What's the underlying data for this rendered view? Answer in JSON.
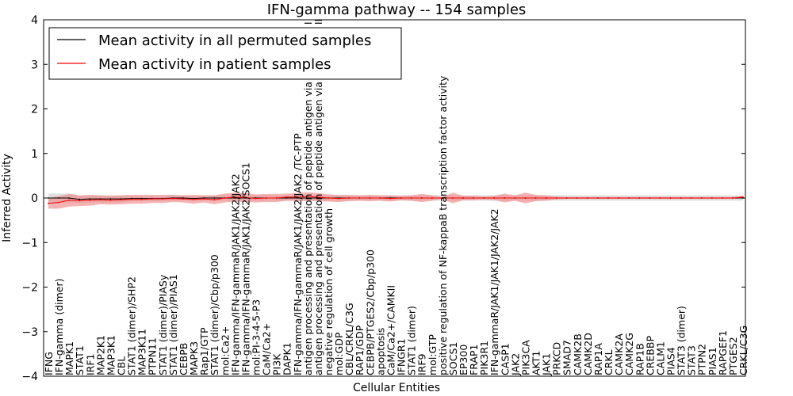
{
  "chart_data": {
    "type": "line",
    "title": "IFN-gamma pathway -- 154 samples",
    "xlabel": "Cellular Entities",
    "ylabel": "Inferred Activity",
    "ylim": [
      -4,
      4
    ],
    "yticks": [
      -4,
      -3,
      -2,
      -1,
      0,
      1,
      2,
      3,
      4
    ],
    "ytick_labels": [
      "−4",
      "−3",
      "−2",
      "−1",
      "0",
      "1",
      "2",
      "3",
      "4"
    ],
    "legend_position": "top-left",
    "categories": [
      "IFNG",
      "IFN-gamma (dimer)",
      "MAPK1",
      "STAT1",
      "IRF1",
      "MAP2K1",
      "MAP3K1",
      "CBL",
      "STAT1 (dimer)/SHP2",
      "MAP3K11",
      "PTPN11",
      "STAT1 (dimer)/PIASy",
      "STAT1 (dimer)/PIAS1",
      "CEBPB",
      "MAPK3",
      "Rap1/GTP",
      "STAT1 (dimer)/Cbp/p300",
      "mol:Ca2+",
      "IFN-gamma/IFN-gammaR/JAK1/JAK2/JAK2",
      "IFN-gamma/IFN-gammaR/JAK1/JAK2/SOCS1",
      "mol:PI-3-4-5-P3",
      "CaM/Ca2+",
      "PI3K",
      "DAPK1",
      "IFN-gamma/IFN-gammaR/JAK1/JAK2/JAK2 /TC-PTP",
      "antigen processing and presentation of peptide antigen via MHC class I",
      "antigen processing and presentation of peptide antigen via MHC class II",
      "negative regulation of cell growth",
      "mol:GDP",
      "CBL/CRKL/C3G",
      "RAP1/GDP",
      "CEBPB/PTGES2/Cbp/p300",
      "apoptosis",
      "CaM/Ca2+/CAMKII",
      "IFNGR1",
      "STAT1 (dimer)",
      "IRF9",
      "mol:GTP",
      "positive regulation of NF-kappaB transcription factor activity",
      "SOCS1",
      "EP300",
      "FRAP1",
      "PIK3R1",
      "IFN-gammaR/JAK1/JAK1/JAK2/JAK2",
      "CASP1",
      "JAK2",
      "PIK3CA",
      "AKT1",
      "JAK1",
      "PRKCD",
      "SMAD7",
      "CAMK2B",
      "CAMK2D",
      "RAP1A",
      "CRKL",
      "CAMK2A",
      "CAMK2G",
      "RAP1B",
      "CREBBP",
      "CALM1",
      "PIAS4",
      "STAT3 (dimer)",
      "STAT3",
      "PTPN2",
      "PIAS1",
      "RAPGEF1",
      "PTGES2",
      "CRKL/C3G"
    ],
    "series": [
      {
        "name": "Mean activity in all permuted samples",
        "color": "#000000",
        "band_color": "#bfbfbf",
        "values": [
          0.0,
          0.0,
          0.0,
          -0.03,
          -0.02,
          -0.02,
          -0.02,
          -0.02,
          -0.01,
          -0.01,
          -0.01,
          -0.01,
          0.0,
          0.0,
          -0.01,
          0.0,
          0.0,
          0.0,
          0.0,
          0.0,
          0.0,
          0.0,
          0.0,
          0.0,
          0.0,
          0.0,
          0.0,
          0.0,
          0.0,
          0.0,
          0.0,
          0.0,
          0.0,
          0.0,
          0.0,
          0.0,
          0.0,
          0.0,
          0.0,
          0.0,
          0.0,
          0.0,
          0.0,
          0.0,
          0.0,
          0.0,
          0.0,
          0.0,
          0.0,
          0.0,
          0.0,
          0.0,
          0.0,
          0.0,
          0.0,
          0.0,
          0.0,
          0.0,
          0.0,
          0.0,
          0.0,
          0.0,
          0.0,
          0.0,
          0.0,
          0.0,
          0.0,
          0.0
        ],
        "band": [
          0.1,
          0.1,
          0.1,
          0.08,
          0.08,
          0.08,
          0.08,
          0.08,
          0.06,
          0.06,
          0.06,
          0.06,
          0.06,
          0.06,
          0.06,
          0.06,
          0.06,
          0.06,
          0.06,
          0.06,
          0.06,
          0.06,
          0.06,
          0.06,
          0.06,
          0.06,
          0.06,
          0.06,
          0.06,
          0.06,
          0.06,
          0.06,
          0.06,
          0.06,
          0.06,
          0.06,
          0.06,
          0.06,
          0.06,
          0.06,
          0.06,
          0.06,
          0.06,
          0.06,
          0.06,
          0.06,
          0.06,
          0.06,
          0.06,
          0.06,
          0.06,
          0.06,
          0.06,
          0.06,
          0.06,
          0.06,
          0.06,
          0.06,
          0.06,
          0.06,
          0.06,
          0.06,
          0.06,
          0.06,
          0.06,
          0.06,
          0.06,
          0.06
        ]
      },
      {
        "name": "Mean activity in patient samples",
        "color": "#ff0000",
        "band_color": "#f08080",
        "values": [
          -0.12,
          -0.1,
          -0.05,
          -0.06,
          -0.05,
          -0.04,
          -0.05,
          -0.04,
          -0.03,
          -0.03,
          -0.02,
          -0.02,
          -0.01,
          -0.02,
          -0.03,
          -0.02,
          -0.04,
          0.0,
          0.02,
          0.01,
          -0.01,
          0.0,
          0.0,
          0.02,
          0.02,
          0.03,
          0.02,
          0.0,
          -0.01,
          0.0,
          0.0,
          0.0,
          0.0,
          -0.01,
          0.0,
          0.0,
          0.0,
          0.0,
          0.0,
          0.0,
          0.0,
          0.0,
          0.0,
          0.0,
          0.0,
          0.0,
          0.0,
          0.0,
          0.0,
          0.0,
          0.0,
          0.0,
          0.0,
          0.0,
          0.0,
          0.0,
          0.0,
          0.0,
          0.0,
          0.0,
          0.0,
          0.0,
          0.0,
          0.0,
          0.0,
          0.0,
          0.0,
          0.02
        ],
        "band": [
          0.12,
          0.14,
          0.14,
          0.12,
          0.12,
          0.1,
          0.1,
          0.1,
          0.1,
          0.1,
          0.09,
          0.09,
          0.08,
          0.08,
          0.1,
          0.08,
          0.1,
          0.1,
          0.1,
          0.1,
          0.09,
          0.09,
          0.09,
          0.08,
          0.09,
          0.1,
          0.09,
          0.08,
          0.08,
          0.07,
          0.06,
          0.07,
          0.06,
          0.07,
          0.05,
          0.06,
          0.09,
          0.06,
          0.02,
          0.12,
          0.05,
          0.05,
          0.03,
          0.05,
          0.1,
          0.06,
          0.12,
          0.07,
          0.06,
          0.03,
          0.02,
          0.02,
          0.02,
          0.02,
          0.02,
          0.02,
          0.02,
          0.02,
          0.02,
          0.02,
          0.02,
          0.02,
          0.02,
          0.02,
          0.02,
          0.02,
          0.02,
          0.02
        ]
      }
    ]
  }
}
